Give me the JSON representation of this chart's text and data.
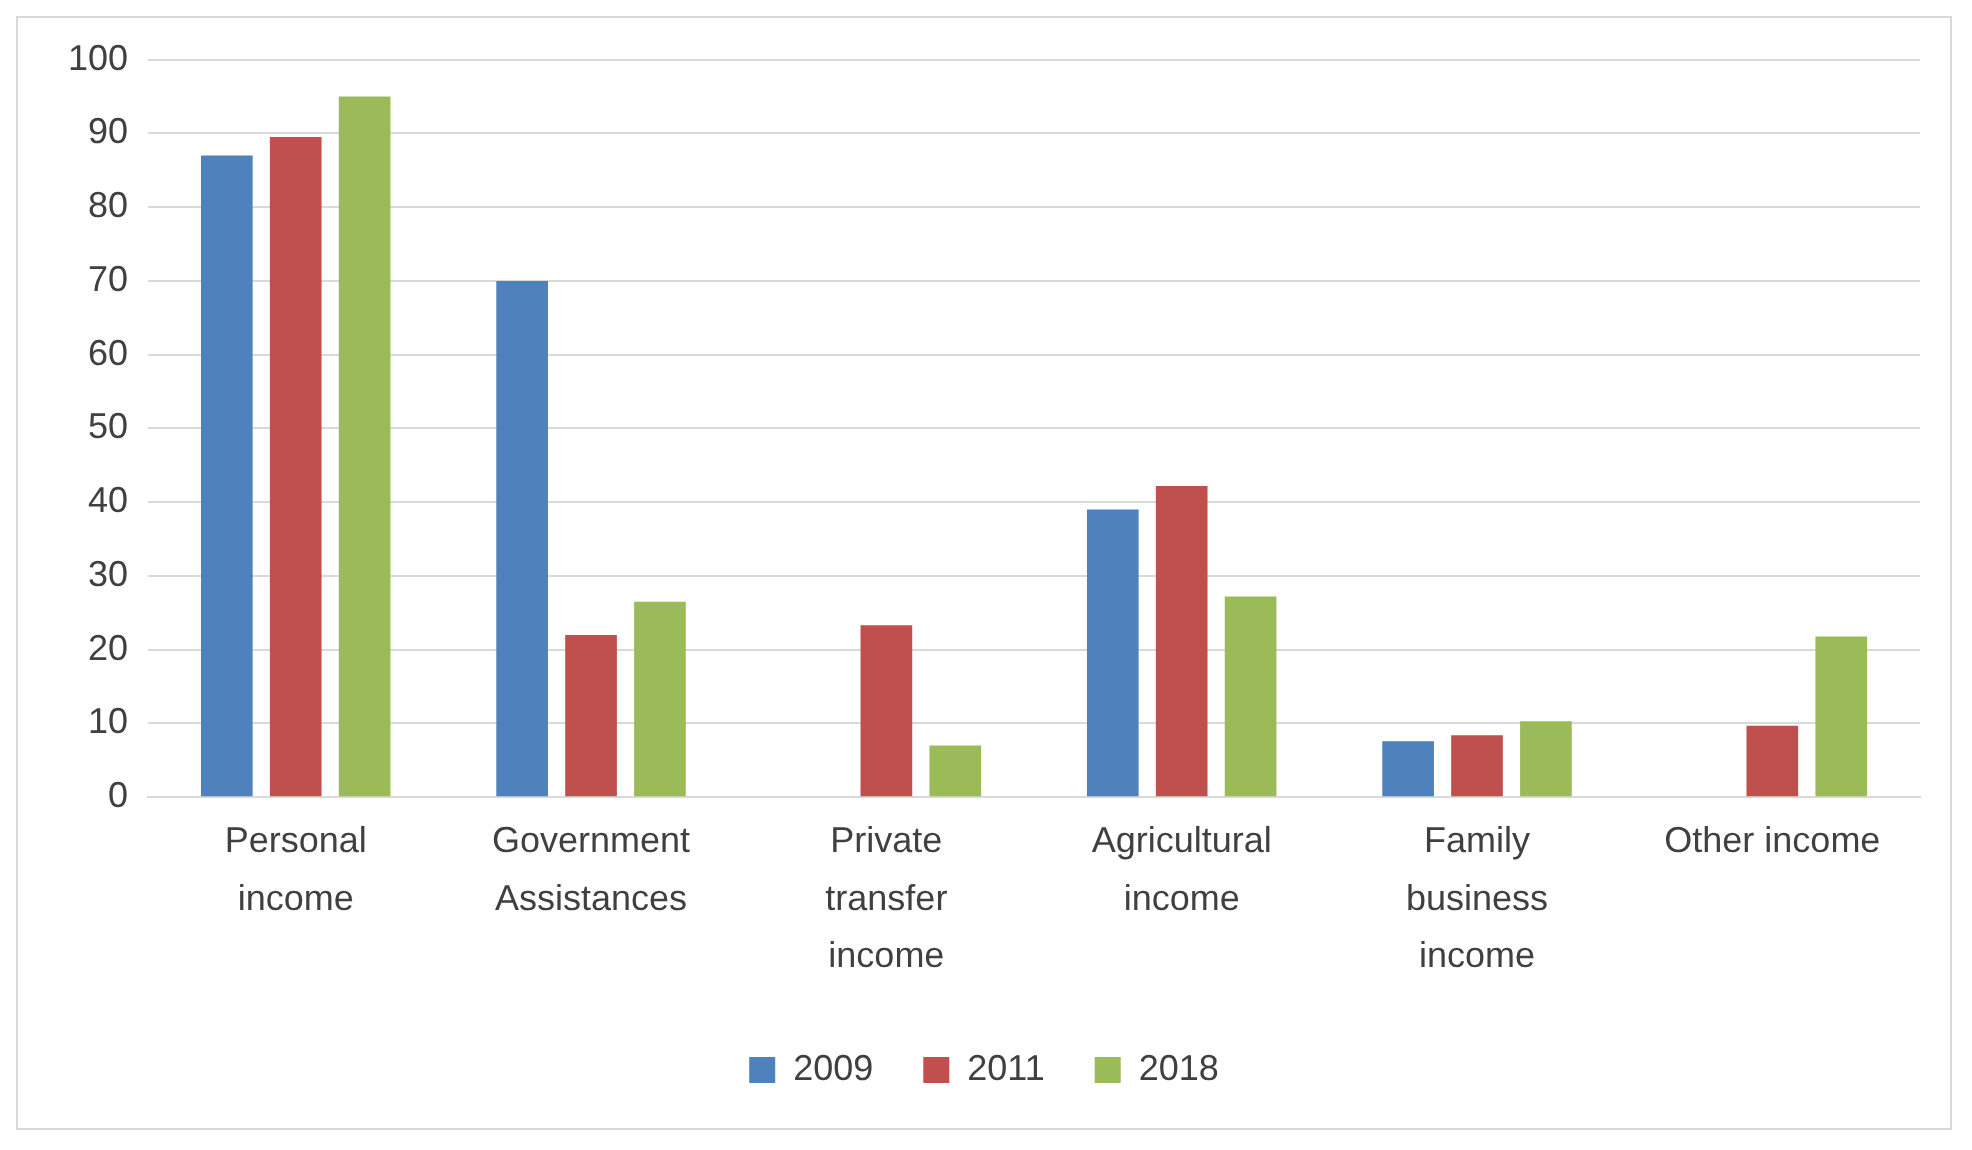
{
  "chart_data": {
    "type": "bar",
    "categories": [
      "Personal income",
      "Government Assistances",
      "Private transfer income",
      "Agricultural income",
      "Family business income",
      "Other income"
    ],
    "series": [
      {
        "name": "2009",
        "color": "#4f81bd",
        "values": [
          87,
          70,
          null,
          39,
          7.6,
          null
        ]
      },
      {
        "name": "2011",
        "color": "#c0504d",
        "values": [
          89.5,
          22,
          23.3,
          42.2,
          8.4,
          9.7
        ]
      },
      {
        "name": "2018",
        "color": "#9bbb59",
        "values": [
          95,
          26.5,
          7,
          27.2,
          10.3,
          21.8
        ]
      }
    ],
    "ylim": [
      0,
      100
    ],
    "yticks": [
      0,
      10,
      20,
      30,
      40,
      50,
      60,
      70,
      80,
      90,
      100
    ],
    "grid": "y",
    "legend": "bottom"
  }
}
